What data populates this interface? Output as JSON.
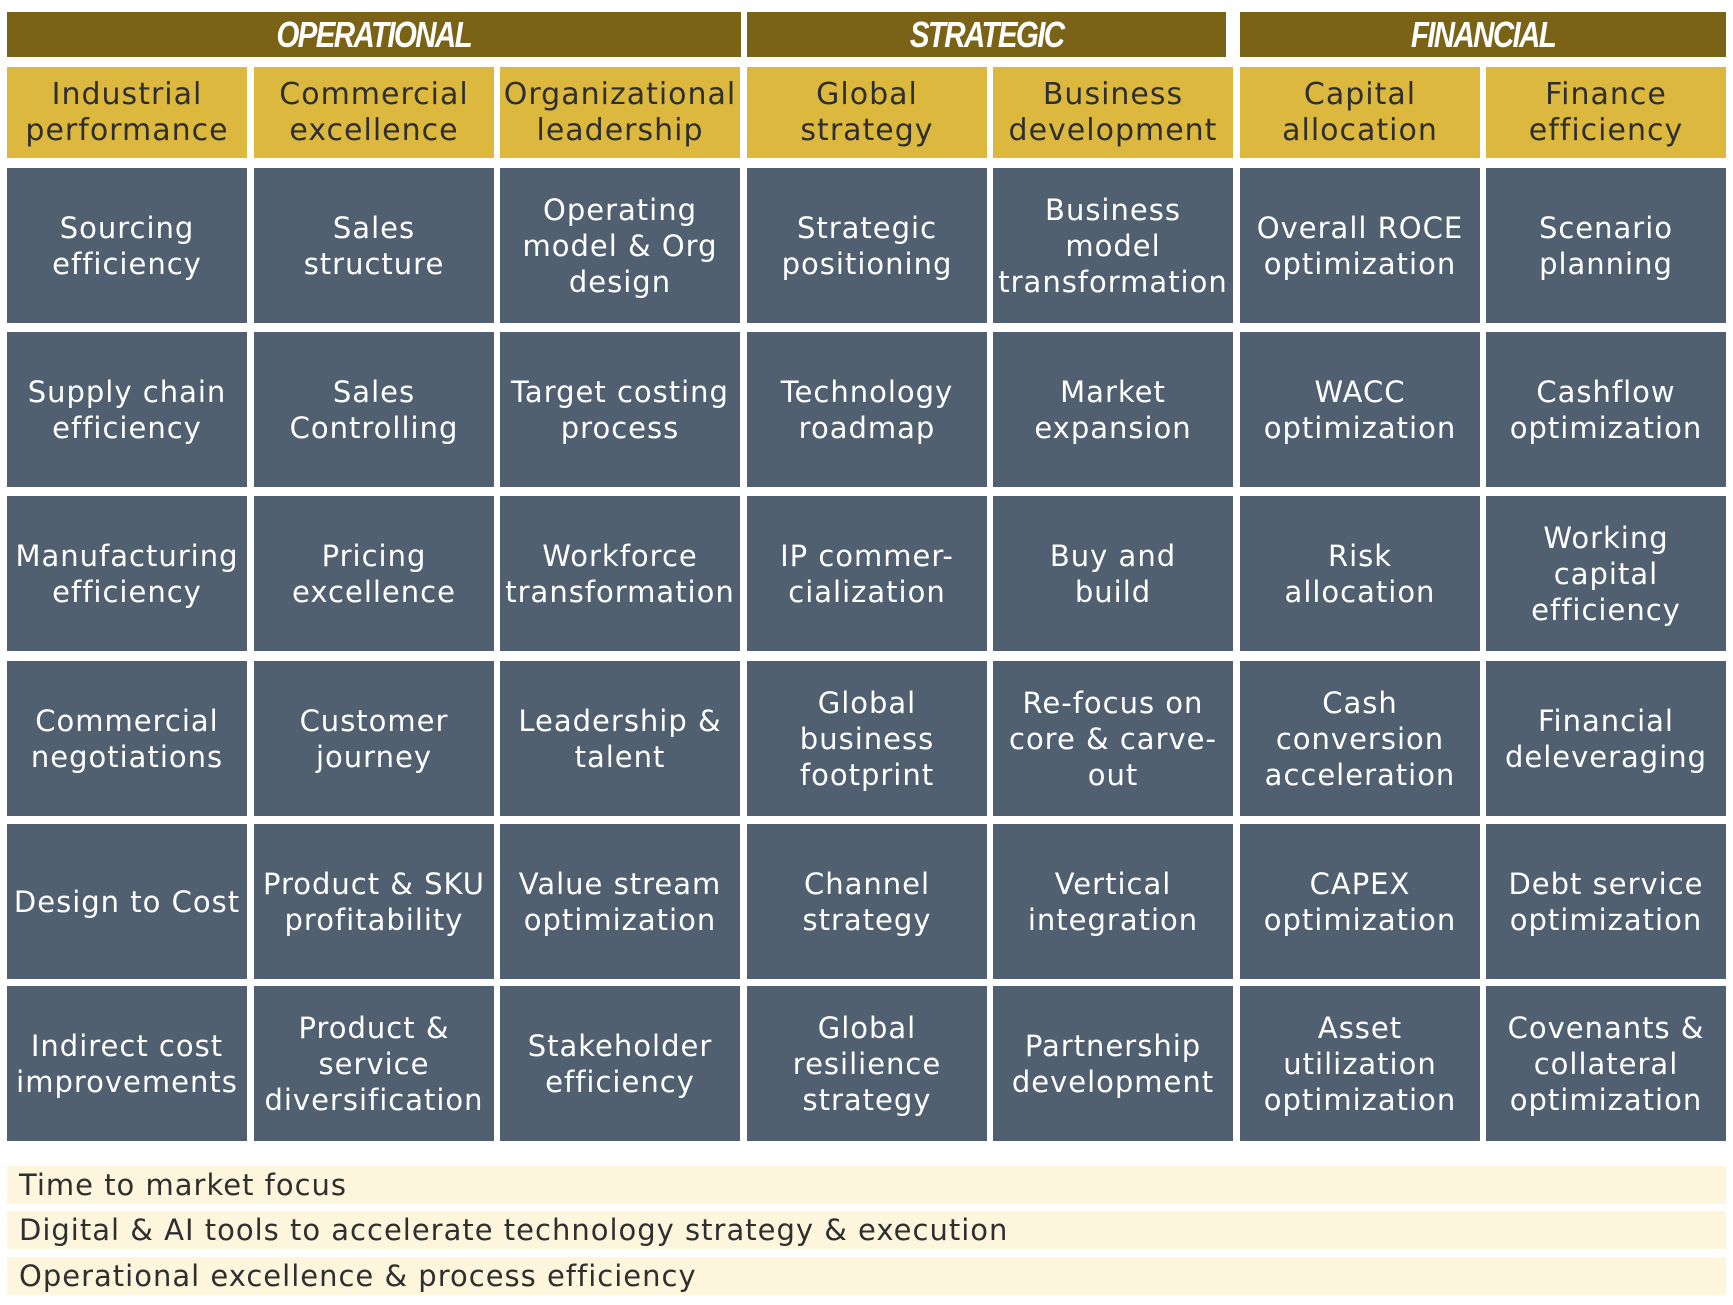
{
  "categories": [
    "OPERATIONAL",
    "STRATEGIC",
    "FINANCIAL"
  ],
  "subheaders": [
    "Industrial\nperformance",
    "Commercial\nexcellence",
    "Organizational\nleadership",
    "Global\nstrategy",
    "Business\ndevelopment",
    "Capital\nallocation",
    "Finance\nefficiency"
  ],
  "columns": [
    [
      "Sourcing\nefficiency",
      "Supply chain\nefficiency",
      "Manufacturing\nefficiency",
      "Commercial\nnegotiations",
      "Design to Cost",
      "Indirect cost\nimprovements"
    ],
    [
      "Sales\nstructure",
      "Sales\nControlling",
      "Pricing\nexcellence",
      "Customer\njourney",
      "Product & SKU\nprofitability",
      "Product &\nservice\ndiversification"
    ],
    [
      "Operating\nmodel & Org\ndesign",
      "Target costing\nprocess",
      "Workforce\ntransformation",
      "Leadership &\ntalent",
      "Value stream\noptimization",
      "Stakeholder\nefficiency"
    ],
    [
      "Strategic\npositioning",
      "Technology\nroadmap",
      "IP commer-\ncialization",
      "Global\nbusiness\nfootprint",
      "Channel\nstrategy",
      "Global\nresilience\nstrategy"
    ],
    [
      "Business\nmodel\ntransformation",
      "Market\nexpansion",
      "Buy and\nbuild",
      "Re-focus on\ncore & carve-\nout",
      "Vertical\nintegration",
      "Partnership\ndevelopment"
    ],
    [
      "Overall ROCE\noptimization",
      "WACC\noptimization",
      "Risk\nallocation",
      "Cash\nconversion\nacceleration",
      "CAPEX\noptimization",
      "Asset\nutilization\noptimization"
    ],
    [
      "Scenario\nplanning",
      "Cashflow\noptimization",
      "Working\ncapital\nefficiency",
      "Financial\ndeleveraging",
      "Debt service\noptimization",
      "Covenants &\ncollateral\noptimization"
    ]
  ],
  "bands": [
    "Time to market focus",
    "Digital & AI tools to accelerate technology strategy & execution",
    "Operational excellence & process efficiency"
  ]
}
